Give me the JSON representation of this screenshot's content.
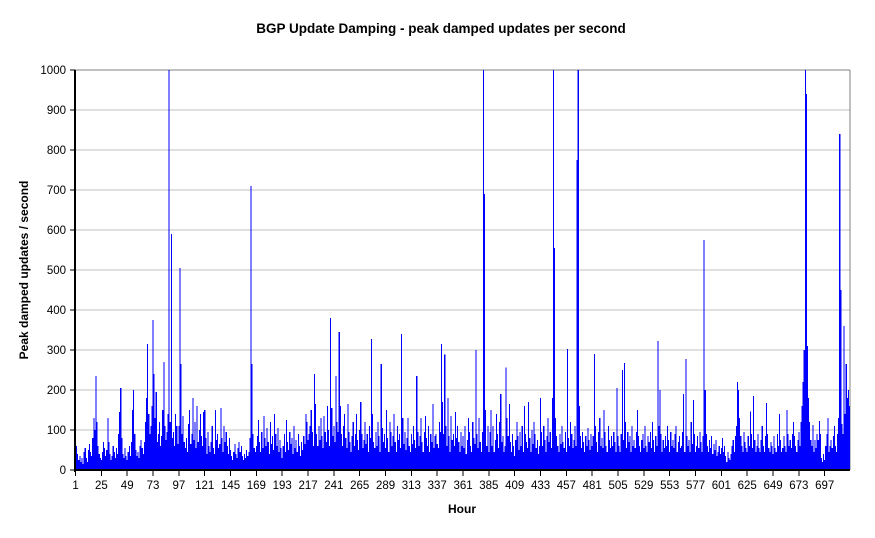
{
  "chart_data": {
    "type": "bar",
    "title": "BGP Update Damping - peak damped updates per second",
    "xlabel": "Hour",
    "ylabel": "Peak damped updates / second",
    "xlim": [
      1,
      720
    ],
    "ylim": [
      0,
      1000
    ],
    "grid": true,
    "legend": false,
    "bar_color": "#0000ff",
    "gridline_color": "#c0c0c0",
    "border_color": "#808080",
    "axis_color": "#000000",
    "xticks": [
      1,
      25,
      49,
      73,
      97,
      121,
      145,
      169,
      193,
      217,
      241,
      265,
      289,
      313,
      337,
      361,
      385,
      409,
      433,
      457,
      481,
      505,
      529,
      553,
      577,
      601,
      625,
      649,
      673,
      697
    ],
    "yticks": [
      0,
      100,
      200,
      300,
      400,
      500,
      600,
      700,
      800,
      900,
      1000
    ],
    "values": [
      90,
      60,
      40,
      25,
      35,
      20,
      30,
      15,
      45,
      55,
      30,
      20,
      50,
      65,
      45,
      35,
      80,
      130,
      100,
      235,
      120,
      60,
      40,
      30,
      25,
      45,
      70,
      55,
      35,
      50,
      130,
      70,
      40,
      25,
      35,
      60,
      45,
      30,
      55,
      40,
      90,
      145,
      205,
      80,
      40,
      30,
      55,
      35,
      25,
      45,
      60,
      35,
      70,
      150,
      200,
      90,
      50,
      35,
      45,
      30,
      60,
      75,
      55,
      40,
      70,
      120,
      180,
      315,
      140,
      90,
      110,
      160,
      375,
      240,
      130,
      195,
      70,
      90,
      120,
      60,
      85,
      150,
      270,
      110,
      75,
      95,
      140,
      1000,
      120,
      590,
      80,
      95,
      60,
      140,
      110,
      65,
      110,
      505,
      265,
      90,
      135,
      70,
      55,
      80,
      45,
      115,
      150,
      65,
      90,
      180,
      75,
      120,
      55,
      160,
      70,
      100,
      140,
      85,
      60,
      145,
      150,
      80,
      40,
      95,
      60,
      45,
      70,
      110,
      55,
      40,
      150,
      75,
      90,
      55,
      65,
      155,
      80,
      45,
      110,
      70,
      95,
      60,
      40,
      80,
      50,
      35,
      25,
      45,
      65,
      40,
      30,
      55,
      70,
      45,
      60,
      35,
      25,
      40,
      30,
      50,
      35,
      45,
      80,
      710,
      265,
      90,
      55,
      45,
      60,
      85,
      125,
      70,
      45,
      95,
      55,
      135,
      80,
      60,
      105,
      70,
      40,
      120,
      65,
      85,
      50,
      140,
      90,
      60,
      105,
      45,
      75,
      55,
      30,
      60,
      90,
      45,
      125,
      70,
      50,
      95,
      65,
      80,
      40,
      110,
      55,
      75,
      45,
      90,
      60,
      35,
      70,
      50,
      85,
      65,
      140,
      120,
      75,
      90,
      110,
      150,
      95,
      60,
      240,
      165,
      90,
      60,
      110,
      75,
      130,
      85,
      55,
      135,
      95,
      70,
      160,
      100,
      60,
      380,
      155,
      85,
      110,
      70,
      235,
      120,
      95,
      345,
      160,
      90,
      60,
      110,
      140,
      80,
      55,
      165,
      95,
      70,
      45,
      85,
      120,
      60,
      90,
      140,
      75,
      50,
      100,
      170,
      90,
      55,
      75,
      120,
      65,
      90,
      45,
      110,
      80,
      327,
      140,
      70,
      55,
      95,
      60,
      120,
      85,
      45,
      265,
      105,
      70,
      90,
      55,
      150,
      80,
      45,
      120,
      95,
      60,
      85,
      140,
      70,
      45,
      110,
      75,
      90,
      55,
      340,
      130,
      65,
      95,
      50,
      80,
      130,
      60,
      45,
      90,
      65,
      110,
      75,
      55,
      235,
      95,
      60,
      85,
      130,
      70,
      45,
      95,
      135,
      80,
      60,
      110,
      45,
      90,
      70,
      165,
      55,
      85,
      90,
      65,
      55,
      120,
      95,
      315,
      170,
      90,
      289,
      110,
      60,
      180,
      85,
      45,
      135,
      75,
      90,
      60,
      145,
      80,
      110,
      70,
      45,
      95,
      60,
      85,
      55,
      110,
      40,
      75,
      130,
      95,
      60,
      45,
      120,
      80,
      65,
      300,
      90,
      55,
      130,
      70,
      45,
      95,
      1000,
      690,
      150,
      60,
      110,
      45,
      95,
      150,
      60,
      110,
      45,
      75,
      140,
      90,
      55,
      120,
      190,
      70,
      85,
      45,
      60,
      256,
      130,
      85,
      165,
      70,
      45,
      90,
      60,
      35,
      75,
      120,
      85,
      50,
      95,
      60,
      110,
      45,
      160,
      90,
      70,
      55,
      170,
      80,
      45,
      100,
      65,
      120,
      90,
      55,
      75,
      40,
      60,
      180,
      95,
      60,
      110,
      75,
      45,
      85,
      130,
      70,
      95,
      55,
      180,
      1000,
      555,
      130,
      85,
      60,
      45,
      90,
      65,
      110,
      70,
      55,
      95,
      45,
      302,
      80,
      60,
      120,
      90,
      55,
      75,
      110,
      60,
      775,
      1000,
      160,
      85,
      55,
      95,
      70,
      45,
      85,
      60,
      105,
      75,
      50,
      90,
      60,
      85,
      290,
      110,
      70,
      45,
      95,
      130,
      60,
      80,
      55,
      150,
      95,
      60,
      45,
      110,
      75,
      55,
      85,
      60,
      95,
      70,
      45,
      205,
      85,
      60,
      45,
      90,
      250,
      75,
      267,
      120,
      55,
      95,
      70,
      85,
      45,
      110,
      60,
      75,
      55,
      95,
      150,
      85,
      60,
      45,
      75,
      90,
      55,
      110,
      60,
      45,
      85,
      70,
      95,
      55,
      120,
      75,
      45,
      85,
      60,
      322,
      110,
      200,
      90,
      45,
      75,
      55,
      85,
      60,
      110,
      75,
      45,
      95,
      60,
      75,
      55,
      90,
      110,
      45,
      70,
      85,
      55,
      60,
      95,
      190,
      45,
      277,
      85,
      60,
      75,
      45,
      120,
      65,
      175,
      90,
      45,
      60,
      85,
      55,
      95,
      70,
      45,
      85,
      575,
      200,
      90,
      60,
      45,
      75,
      55,
      85,
      40,
      65,
      50,
      75,
      35,
      45,
      60,
      40,
      55,
      80,
      45,
      60,
      35,
      20,
      45,
      30,
      25,
      40,
      60,
      75,
      45,
      85,
      110,
      220,
      200,
      130,
      85,
      60,
      45,
      95,
      70,
      55,
      45,
      85,
      60,
      146,
      90,
      55,
      185,
      75,
      45,
      60,
      90,
      55,
      45,
      75,
      110,
      60,
      45,
      85,
      168,
      90,
      55,
      45,
      70,
      60,
      40,
      85,
      55,
      45,
      90,
      60,
      140,
      75,
      45,
      55,
      85,
      60,
      45,
      150,
      90,
      60,
      75,
      55,
      90,
      120,
      85,
      60,
      45,
      75,
      95,
      60,
      120,
      160,
      220,
      300,
      1000,
      940,
      310,
      180,
      120,
      75,
      60,
      113,
      45,
      75,
      55,
      90,
      75,
      123,
      90,
      30,
      20,
      40,
      25,
      60,
      90,
      130,
      45,
      60,
      75,
      55,
      85,
      110,
      60,
      45,
      90,
      130,
      840,
      450,
      115,
      90,
      360,
      140,
      265,
      180,
      200,
      160
    ]
  }
}
